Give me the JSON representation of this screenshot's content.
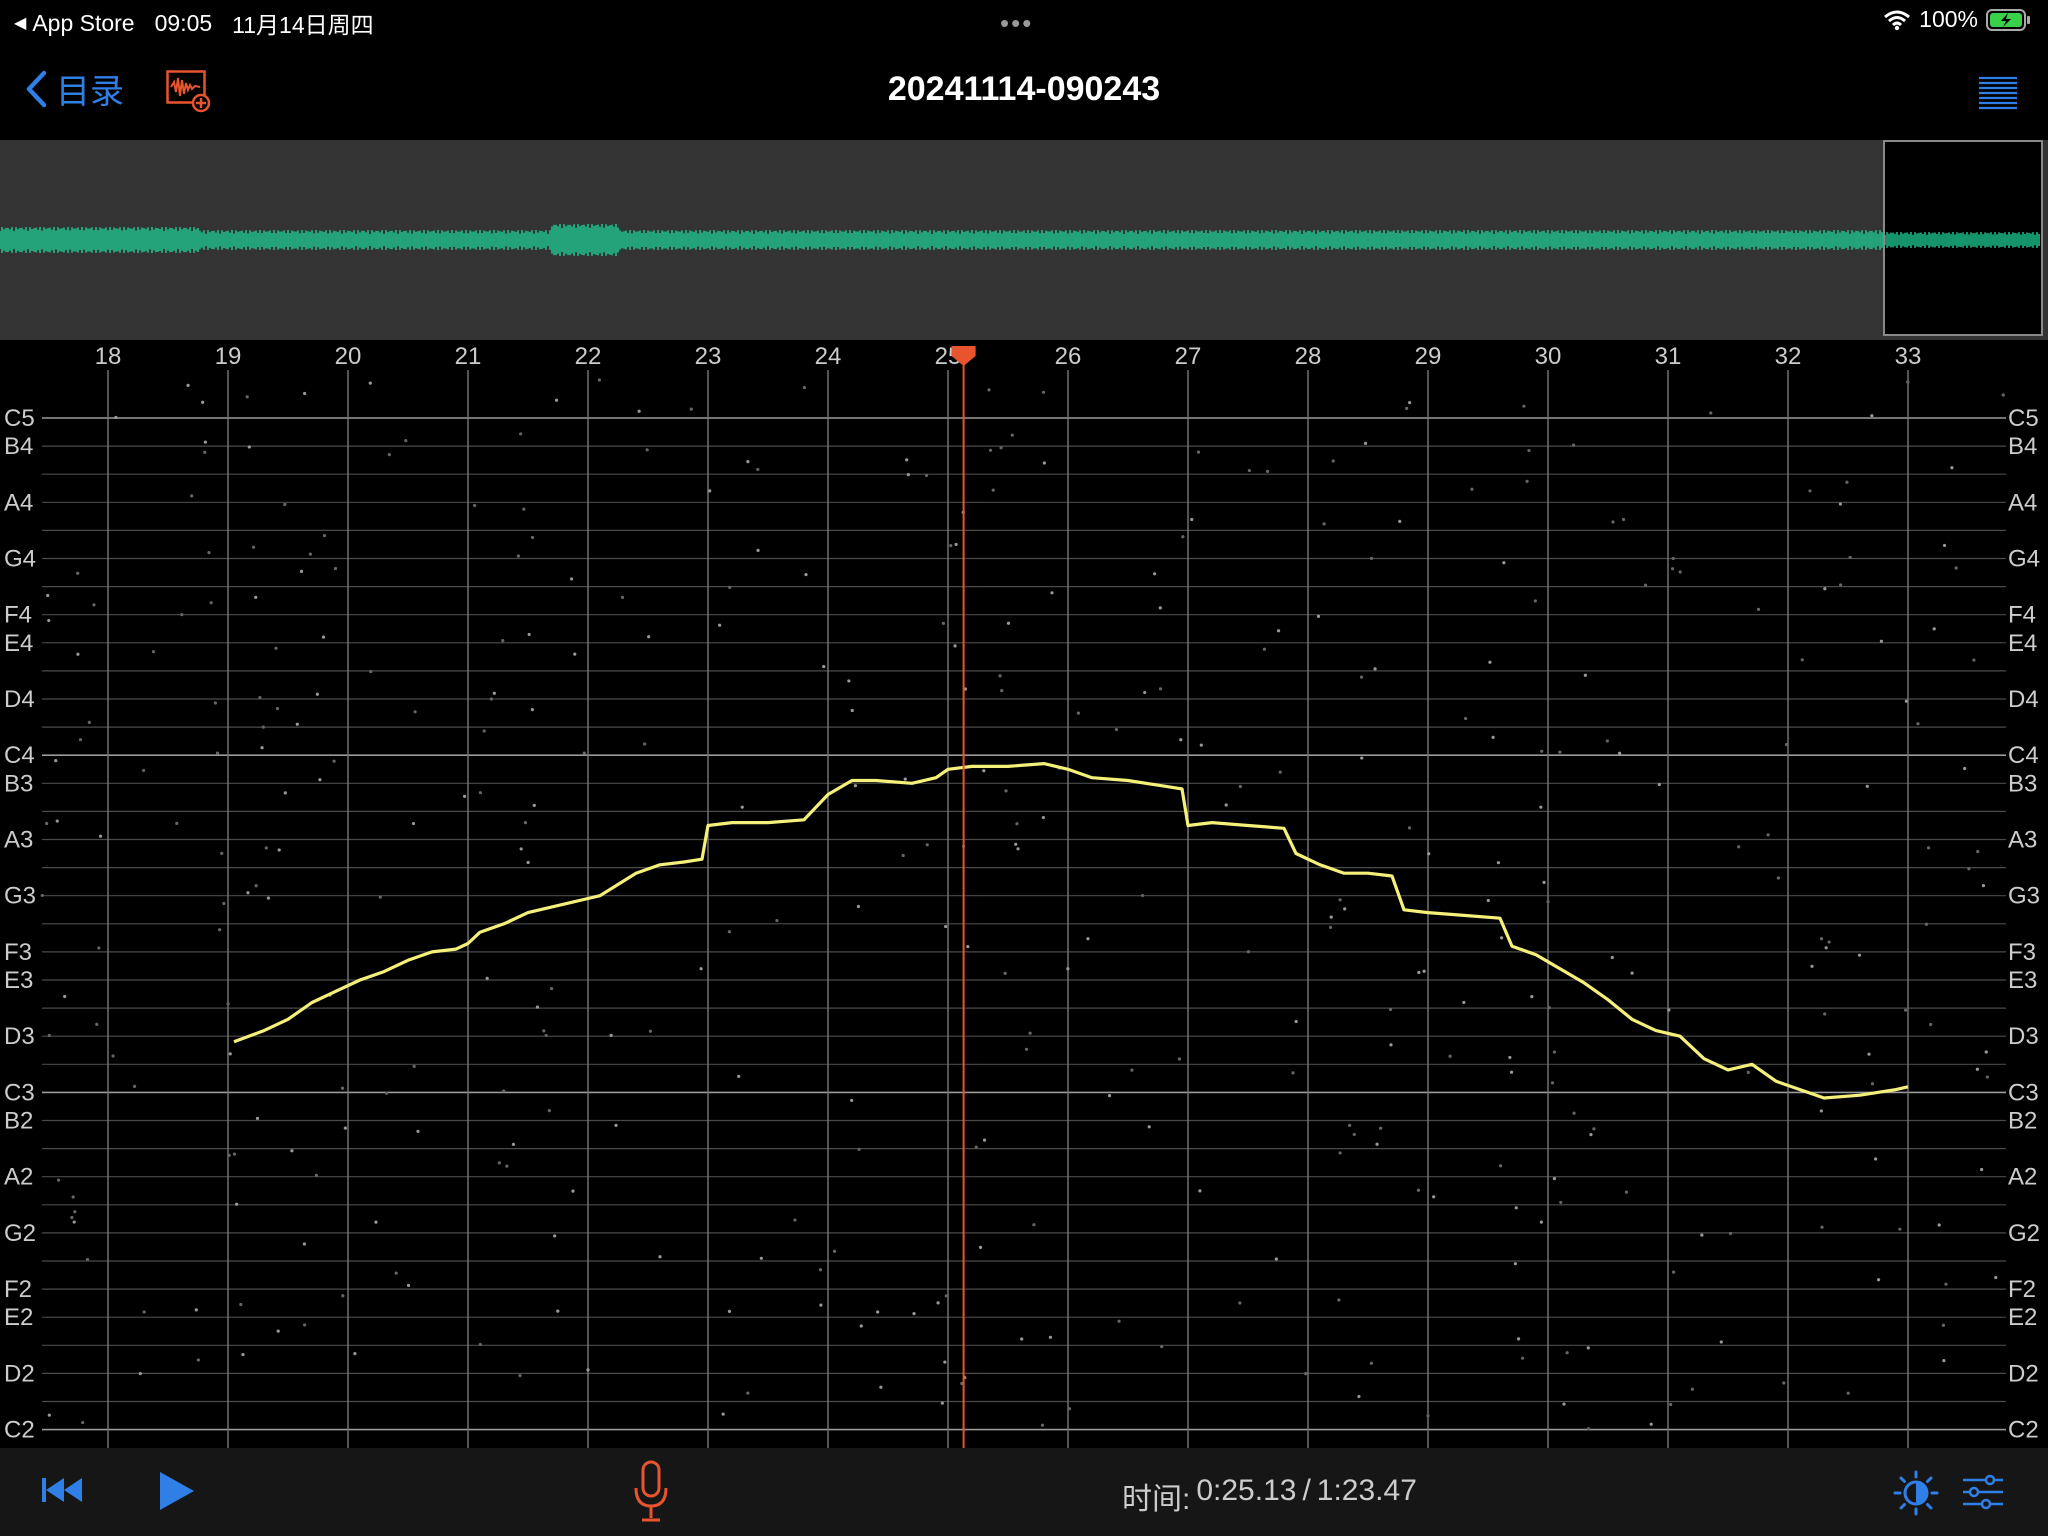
{
  "status": {
    "back_app": "App Store",
    "time": "09:05",
    "date": "11月14日周四",
    "dots": "•••",
    "battery": "100%"
  },
  "nav": {
    "back_label": "目录",
    "title": "20241114-090243"
  },
  "timeline": {
    "ticks": [
      "18",
      "19",
      "20",
      "21",
      "22",
      "23",
      "24",
      "25",
      "26",
      "27",
      "28",
      "29",
      "30",
      "31",
      "32",
      "33"
    ],
    "playhead": 25.13
  },
  "notes": {
    "labels": [
      "C5",
      "B4",
      "A4",
      "G4",
      "F4",
      "E4",
      "D4",
      "C4",
      "B3",
      "A3",
      "G3",
      "F3",
      "E3",
      "D3",
      "C3",
      "B2",
      "A2",
      "G2",
      "F2",
      "E2",
      "D2",
      "C2"
    ]
  },
  "pitch_trace": [
    [
      19.05,
      -10.2
    ],
    [
      19.3,
      -9.8
    ],
    [
      19.5,
      -9.4
    ],
    [
      19.7,
      -8.8
    ],
    [
      19.9,
      -8.4
    ],
    [
      20.1,
      -8.0
    ],
    [
      20.3,
      -7.7
    ],
    [
      20.5,
      -7.3
    ],
    [
      20.7,
      -7.0
    ],
    [
      20.9,
      -6.9
    ],
    [
      21.0,
      -6.7
    ],
    [
      21.1,
      -6.3
    ],
    [
      21.3,
      -6.0
    ],
    [
      21.5,
      -5.6
    ],
    [
      21.7,
      -5.4
    ],
    [
      21.9,
      -5.2
    ],
    [
      22.0,
      -5.1
    ],
    [
      22.1,
      -5.0
    ],
    [
      22.4,
      -4.2
    ],
    [
      22.6,
      -3.9
    ],
    [
      22.8,
      -3.8
    ],
    [
      22.95,
      -3.7
    ],
    [
      23.0,
      -2.5
    ],
    [
      23.2,
      -2.4
    ],
    [
      23.5,
      -2.4
    ],
    [
      23.8,
      -2.3
    ],
    [
      24.0,
      -1.4
    ],
    [
      24.2,
      -0.9
    ],
    [
      24.4,
      -0.9
    ],
    [
      24.7,
      -1.0
    ],
    [
      24.9,
      -0.8
    ],
    [
      25.0,
      -0.5
    ],
    [
      25.2,
      -0.4
    ],
    [
      25.5,
      -0.4
    ],
    [
      25.8,
      -0.3
    ],
    [
      26.0,
      -0.5
    ],
    [
      26.2,
      -0.8
    ],
    [
      26.5,
      -0.9
    ],
    [
      26.8,
      -1.1
    ],
    [
      26.95,
      -1.2
    ],
    [
      27.0,
      -2.5
    ],
    [
      27.2,
      -2.4
    ],
    [
      27.5,
      -2.5
    ],
    [
      27.8,
      -2.6
    ],
    [
      27.9,
      -3.5
    ],
    [
      28.1,
      -3.9
    ],
    [
      28.3,
      -4.2
    ],
    [
      28.5,
      -4.2
    ],
    [
      28.7,
      -4.3
    ],
    [
      28.8,
      -5.5
    ],
    [
      29.0,
      -5.6
    ],
    [
      29.3,
      -5.7
    ],
    [
      29.6,
      -5.8
    ],
    [
      29.7,
      -6.8
    ],
    [
      29.9,
      -7.1
    ],
    [
      30.1,
      -7.6
    ],
    [
      30.3,
      -8.1
    ],
    [
      30.5,
      -8.7
    ],
    [
      30.7,
      -9.4
    ],
    [
      30.9,
      -9.8
    ],
    [
      31.1,
      -10.0
    ],
    [
      31.3,
      -10.8
    ],
    [
      31.5,
      -11.2
    ],
    [
      31.7,
      -11.0
    ],
    [
      31.9,
      -11.6
    ],
    [
      32.1,
      -11.9
    ],
    [
      32.3,
      -12.2
    ],
    [
      32.6,
      -12.1
    ],
    [
      32.9,
      -11.9
    ],
    [
      33.0,
      -11.8
    ]
  ],
  "playback": {
    "time_label": "时间:",
    "current": "0:25.13",
    "separator": "/",
    "total": "1:23.47"
  },
  "colors": {
    "accent": "#2f7fe6",
    "waveform": "#1ed39a",
    "trace": "#f5f07a",
    "playhead": "#e8542e",
    "record": "#e8542e"
  }
}
